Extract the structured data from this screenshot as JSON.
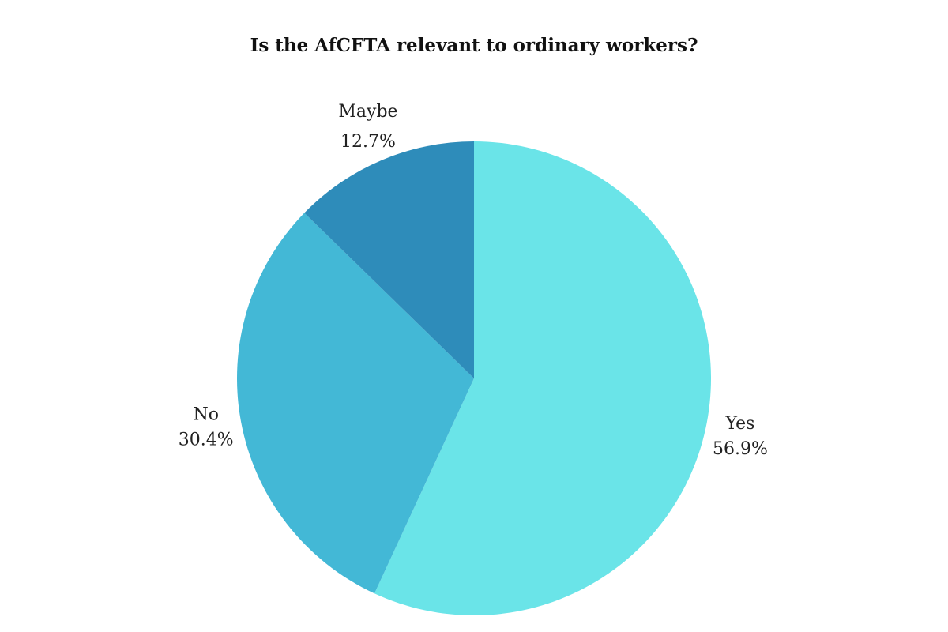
{
  "chart_data": {
    "type": "pie",
    "title": "Is the AfCFTA relevant to ordinary workers?",
    "slices": [
      {
        "label": "Yes",
        "value": 56.9,
        "display": "56.9%",
        "color": "#6ae4e8"
      },
      {
        "label": "No",
        "value": 30.4,
        "display": "30.4%",
        "color": "#43b8d6"
      },
      {
        "label": "Maybe",
        "value": 12.7,
        "display": "12.7%",
        "color": "#2e8cba"
      }
    ],
    "start": "12 o'clock",
    "direction": "clockwise",
    "legend": "none"
  }
}
